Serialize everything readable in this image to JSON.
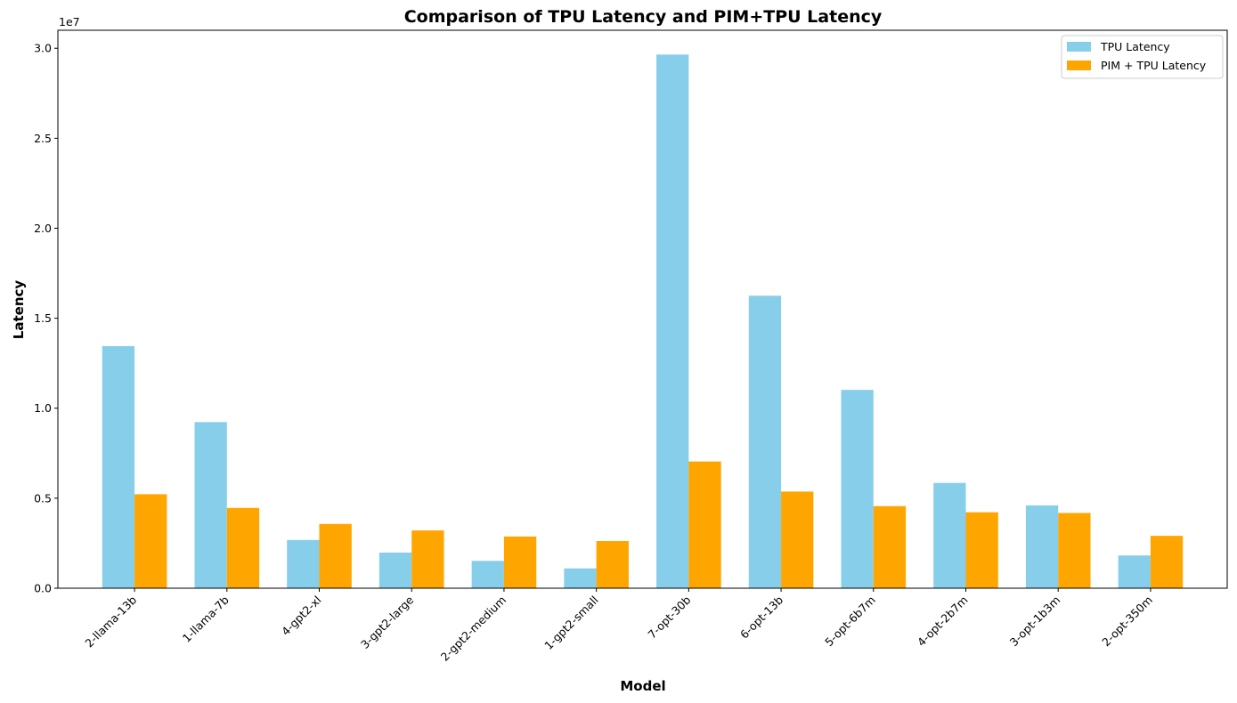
{
  "chart_data": {
    "type": "bar",
    "title": "Comparison of TPU Latency and PIM+TPU Latency",
    "xlabel": "Model",
    "ylabel": "Latency",
    "y_multiplier_label": "1e7",
    "y_scale": 10000000,
    "ylim": [
      0,
      31000000
    ],
    "yticks": [
      0,
      5000000,
      10000000,
      15000000,
      20000000,
      25000000,
      30000000
    ],
    "ytick_labels": [
      "0.0",
      "0.5",
      "1.0",
      "1.5",
      "2.0",
      "2.5",
      "3.0"
    ],
    "grid": false,
    "legend_position": "top-right",
    "categories": [
      "2-llama-13b",
      "1-llama-7b",
      "4-gpt2-xl",
      "3-gpt2-large",
      "2-gpt2-medium",
      "1-gpt2-small",
      "7-opt-30b",
      "6-opt-13b",
      "5-opt-6b7m",
      "4-opt-2b7m",
      "3-opt-1b3m",
      "2-opt-350m"
    ],
    "series": [
      {
        "name": "TPU Latency",
        "color": "#87CEEB",
        "values": [
          13450000,
          9230000,
          2680000,
          1980000,
          1520000,
          1100000,
          29650000,
          16250000,
          11020000,
          5850000,
          4600000,
          1820000
        ]
      },
      {
        "name": "PIM + TPU Latency",
        "color": "#FFA500",
        "values": [
          5220000,
          4460000,
          3570000,
          3210000,
          2870000,
          2620000,
          7040000,
          5370000,
          4560000,
          4220000,
          4180000,
          2910000
        ]
      }
    ]
  }
}
